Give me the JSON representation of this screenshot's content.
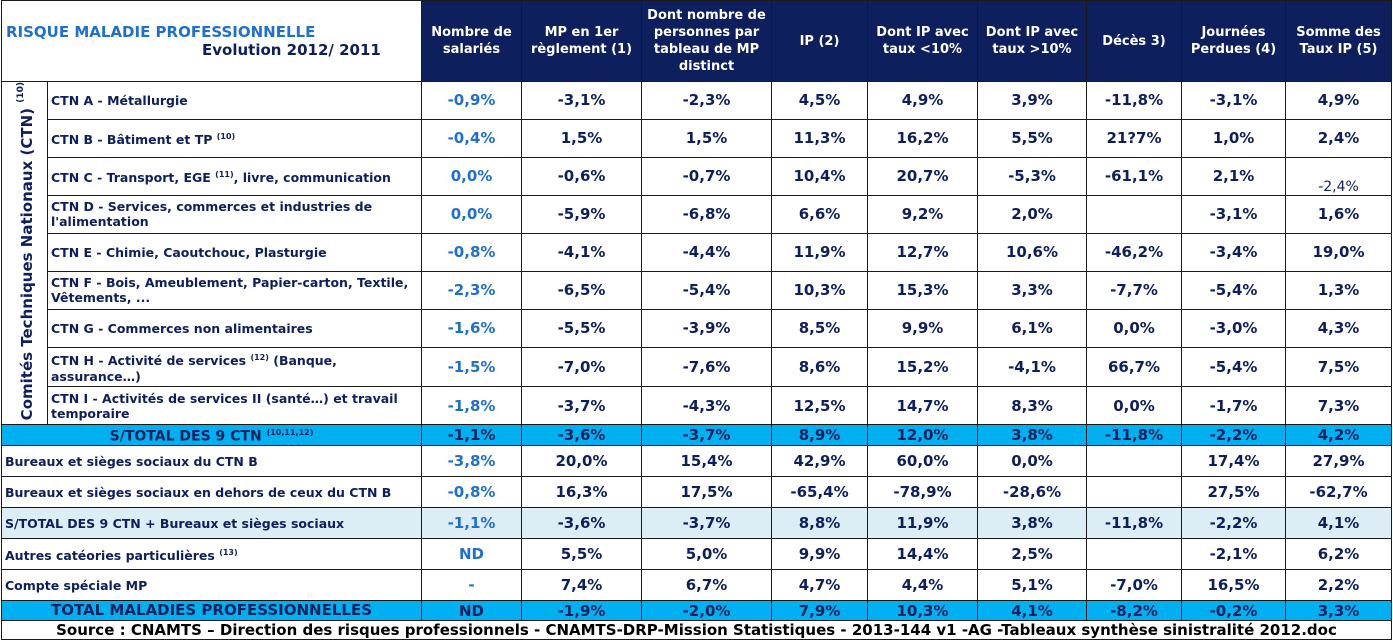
{
  "title": {
    "line1": "RISQUE  MALADIE PROFESSIONNELLE",
    "line2": "Evolution  2012/ 2011"
  },
  "columns": [
    "Nombre de salariés",
    "MP en 1er règlement (1)",
    "Dont nombre de personnes par tableau de MP distinct",
    "IP (2)",
    "Dont IP avec taux <10%",
    "Dont IP avec taux >10%",
    "Décès 3)",
    "Journées Perdues (4)",
    "Somme des Taux IP (5)"
  ],
  "group_label": "Comités Techniques Nationaux (CTN)",
  "group_label_sup": "(10)",
  "ctn_rows": [
    {
      "label": "CTN A - Métallurgie",
      "sup": "",
      "label_tail": "",
      "values": [
        "-0,9%",
        "-3,1%",
        "-2,3%",
        "4,5%",
        "4,9%",
        "3,9%",
        "-11,8%",
        "-3,1%",
        "4,9%"
      ]
    },
    {
      "label": "CTN B - Bâtiment et TP",
      "sup": "(10)",
      "label_tail": "",
      "values": [
        "-0,4%",
        "1,5%",
        "1,5%",
        "11,3%",
        "16,2%",
        "5,5%",
        "21?7%",
        "1,0%",
        "2,4%"
      ]
    },
    {
      "label": "CTN C - Transport, EGE",
      "sup": "(11)",
      "label_tail": ", livre, communication",
      "values": [
        "0,0%",
        "-0,6%",
        "-0,7%",
        "10,4%",
        "20,7%",
        "-5,3%",
        "-61,1%",
        "2,1%",
        "-2,4%"
      ]
    },
    {
      "label": "CTN D - Services, commerces et industries de l'alimentation",
      "sup": "",
      "label_tail": "",
      "values": [
        "0,0%",
        "-5,9%",
        "-6,8%",
        "6,6%",
        "9,2%",
        "2,0%",
        "",
        "-3,1%",
        "1,6%"
      ]
    },
    {
      "label": "CTN E - Chimie, Caoutchouc, Plasturgie",
      "sup": "",
      "label_tail": "",
      "values": [
        "-0,8%",
        "-4,1%",
        "-4,4%",
        "11,9%",
        "12,7%",
        "10,6%",
        "-46,2%",
        "-3,4%",
        "19,0%"
      ]
    },
    {
      "label": "CTN F - Bois, Ameublement, Papier-carton, Textile, Vêtements, ...",
      "sup": "",
      "label_tail": "",
      "values": [
        "-2,3%",
        "-6,5%",
        "-5,4%",
        "10,3%",
        "15,3%",
        "3,3%",
        "-7,7%",
        "-5,4%",
        "1,3%"
      ]
    },
    {
      "label": "CTN G - Commerces non alimentaires",
      "sup": "",
      "label_tail": "",
      "values": [
        "-1,6%",
        "-5,5%",
        "-3,9%",
        "8,5%",
        "9,9%",
        "6,1%",
        "0,0%",
        "-3,0%",
        "4,3%"
      ]
    },
    {
      "label": "CTN H - Activité de services",
      "sup": "(12)",
      "label_tail": " (Banque, assurance…)",
      "values": [
        "-1,5%",
        "-7,0%",
        "-7,6%",
        "8,6%",
        "15,2%",
        "-4,1%",
        "66,7%",
        "-5,4%",
        "7,5%"
      ]
    },
    {
      "label": "CTN I - Activités de services II (santé…) et travail temporaire",
      "sup": "",
      "label_tail": "",
      "values": [
        "-1,8%",
        "-3,7%",
        "-4,3%",
        "12,5%",
        "14,7%",
        "8,3%",
        "0,0%",
        "-1,7%",
        "7,3%"
      ]
    }
  ],
  "subtotal": {
    "label": "S/TOTAL DES 9 CTN",
    "sup": "(10,11,12)",
    "values": [
      "-1,1%",
      "-3,6%",
      "-3,7%",
      "8,9%",
      "12,0%",
      "3,8%",
      "-11,8%",
      "-2,2%",
      "4,2%"
    ]
  },
  "other_rows": [
    {
      "label": "Bureaux et sièges sociaux du CTN B",
      "sup": "",
      "values": [
        "-3,8%",
        "20,0%",
        "15,4%",
        "42,9%",
        "60,0%",
        "0,0%",
        "",
        "17,4%",
        "27,9%"
      ]
    },
    {
      "label": "Bureaux et sièges sociaux en dehors de ceux du CTN B",
      "sup": "",
      "values": [
        "-0,8%",
        "16,3%",
        "17,5%",
        "-65,4%",
        "-78,9%",
        "-28,6%",
        "",
        "27,5%",
        "-62,7%"
      ]
    }
  ],
  "subtotal2": {
    "label": "S/TOTAL DES 9 CTN + Bureaux et sièges sociaux",
    "values": [
      "-1,1%",
      "-3,6%",
      "-3,7%",
      "8,8%",
      "11,9%",
      "3,8%",
      "-11,8%",
      "-2,2%",
      "4,1%"
    ]
  },
  "special_rows": [
    {
      "label": "Autres catéories particulières",
      "sup": "(13)",
      "values": [
        "ND",
        "5,5%",
        "5,0%",
        "9,9%",
        "14,4%",
        "2,5%",
        "",
        "-2,1%",
        "6,2%"
      ]
    },
    {
      "label": "Compte spéciale MP",
      "sup": "",
      "values": [
        "-",
        "7,4%",
        "6,7%",
        "4,7%",
        "4,4%",
        "5,1%",
        "-7,0%",
        "16,5%",
        "2,2%"
      ]
    }
  ],
  "total": {
    "label": "TOTAL MALADIES PROFESSIONNELLES",
    "values": [
      "ND",
      "-1,9%",
      "-2,0%",
      "7,9%",
      "10,3%",
      "4,1%",
      "-8,2%",
      "-0,2%",
      "3,3%"
    ]
  },
  "source": "Source : CNAMTS – Direction des risques professionnels - CNAMTS-DRP-Mission Statistiques - 2013-144 v1 -AG -Tableaux synthèse sinistralité 2012.doc",
  "colors": {
    "header_bg": "#0d1f5c",
    "subtotal_bg": "#00b0f0",
    "subtotal2_bg": "#dcedf5",
    "accent_text": "#1f6fd0"
  }
}
